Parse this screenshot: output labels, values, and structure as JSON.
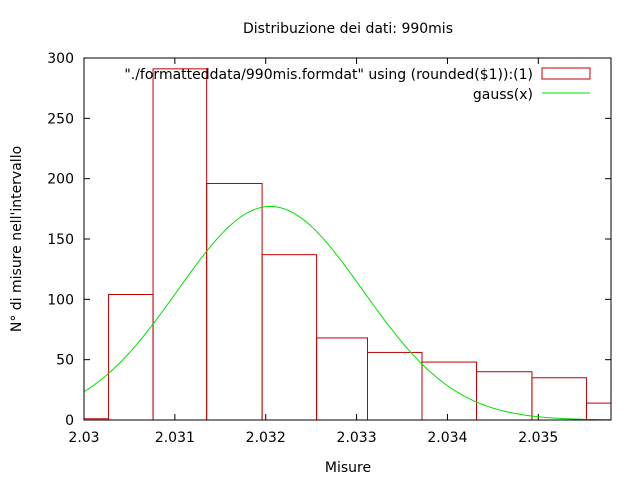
{
  "chart_data": {
    "type": "bar",
    "title": "Distribuzione dei dati: 990mis",
    "xlabel": "Misure",
    "ylabel": "N° di misure nell'intervallo",
    "xlim": [
      2.03,
      2.0358
    ],
    "ylim": [
      0,
      300
    ],
    "grid": false,
    "legend_position": "top-right",
    "x_ticks": [
      "2.03",
      "2.031",
      "2.032",
      "2.033",
      "2.034",
      "2.035"
    ],
    "y_ticks": [
      "0",
      "50",
      "100",
      "150",
      "200",
      "250",
      "300"
    ],
    "series": [
      {
        "name": "\"./formatteddata/990mis.formdat\" using (rounded($1)):(1)",
        "style": "boxes",
        "color": "#c00000",
        "bins": [
          {
            "x0": 2.0298,
            "x1": 2.03027,
            "value": 1
          },
          {
            "x0": 2.03027,
            "x1": 2.03076,
            "value": 104
          },
          {
            "x0": 2.03076,
            "x1": 2.03135,
            "value": 291
          },
          {
            "x0": 2.03135,
            "x1": 2.03196,
            "value": 196
          },
          {
            "x0": 2.03196,
            "x1": 2.03256,
            "value": 137
          },
          {
            "x0": 2.03256,
            "x1": 2.03312,
            "value": 68
          },
          {
            "x0": 2.03312,
            "x1": 2.03372,
            "value": 56
          },
          {
            "x0": 2.03372,
            "x1": 2.03432,
            "value": 48
          },
          {
            "x0": 2.03432,
            "x1": 2.03493,
            "value": 40
          },
          {
            "x0": 2.03493,
            "x1": 2.03553,
            "value": 35
          },
          {
            "x0": 2.03553,
            "x1": 2.0358,
            "value": 14
          }
        ]
      },
      {
        "name": "gauss(x)",
        "style": "line",
        "color": "#00e000",
        "function": "gaussian",
        "peak": 177,
        "mean": 2.03205,
        "sigma": 0.00102
      }
    ]
  }
}
